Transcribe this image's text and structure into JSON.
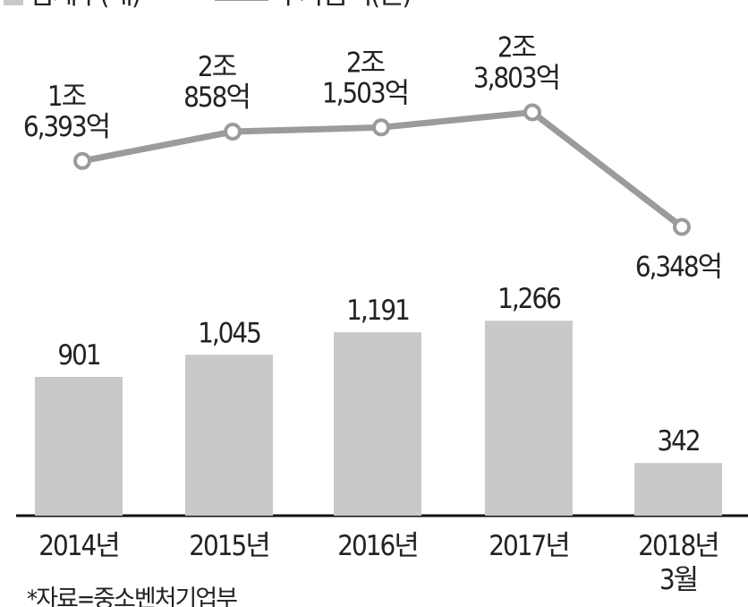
{
  "chart_data": {
    "type": "bar-line",
    "categories": [
      "2014년",
      "2015년",
      "2016년",
      "2017년",
      "2018년 3월"
    ],
    "series": [
      {
        "name": "업체수(개)",
        "type": "bar",
        "color": "#c9c9c9",
        "values": [
          901,
          1045,
          1191,
          1266,
          342
        ],
        "value_labels": [
          "901",
          "1,045",
          "1,191",
          "1,266",
          "342"
        ]
      },
      {
        "name": "투자금액(원)",
        "type": "line",
        "axis": "y2",
        "color": "#9b9b9b",
        "values": [
          1639300000000,
          2085800000000,
          2150300000000,
          2380300000000,
          634800000000
        ],
        "value_labels": [
          "1조 6,393억",
          "2조 858억",
          "2조 1,503억",
          "2조 3,803억",
          "6,348억"
        ]
      }
    ],
    "ylim": [
      0,
      1500
    ],
    "y2lim": [
      0,
      3000000000000
    ],
    "source": "*자료=중소벤처기업부"
  }
}
